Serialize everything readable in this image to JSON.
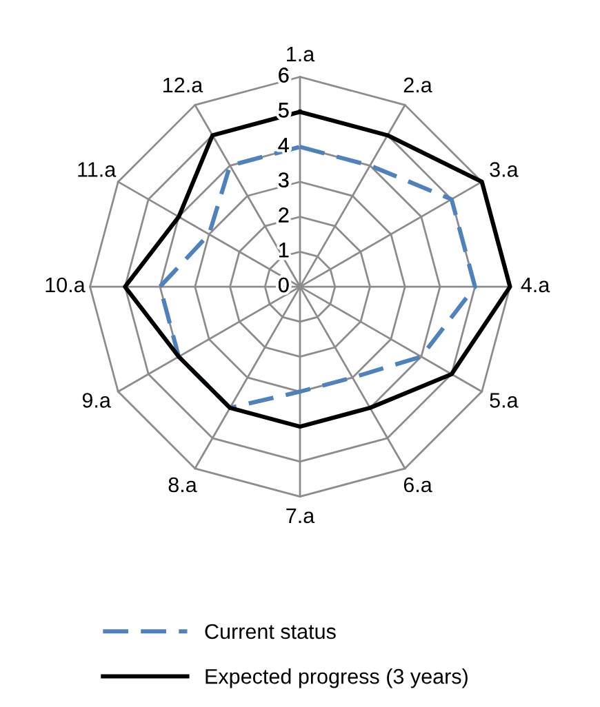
{
  "chart_data": {
    "type": "radar",
    "categories": [
      "1.a",
      "2.a",
      "3.a",
      "4.a",
      "5.a",
      "6.a",
      "7.a",
      "8.a",
      "9.a",
      "10.a",
      "11.a",
      "12.a"
    ],
    "ylim": [
      0,
      6
    ],
    "yticks": [
      0,
      1,
      2,
      3,
      4,
      5,
      6
    ],
    "grid": true,
    "legend": "bottom",
    "series": [
      {
        "name": "Current status",
        "color": "#4f81bd",
        "line_style": "dashed",
        "values": [
          4,
          4,
          5,
          5,
          4,
          3,
          3,
          4,
          4,
          4,
          3,
          4
        ]
      },
      {
        "name": "Expected progress (3 years)",
        "color": "#000000",
        "line_style": "solid",
        "values": [
          5,
          5,
          6,
          6,
          5,
          4,
          4,
          4,
          4,
          5,
          4,
          5
        ]
      }
    ]
  }
}
